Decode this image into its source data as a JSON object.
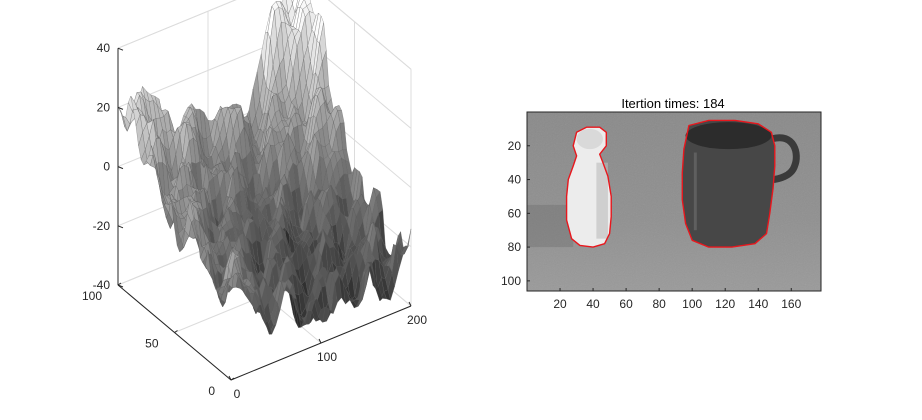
{
  "chart_data": [
    {
      "type": "surface",
      "title": "",
      "xlabel": "",
      "ylabel": "",
      "zlabel": "",
      "xlim": [
        0,
        200
      ],
      "ylim": [
        0,
        100
      ],
      "zlim": [
        -40,
        40
      ],
      "x_ticks": [
        0,
        100,
        200
      ],
      "y_ticks": [
        0,
        50,
        100
      ],
      "z_ticks": [
        -40,
        -20,
        0,
        20,
        40
      ],
      "grid": true,
      "colormap": "gray"
    },
    {
      "type": "image",
      "title": "Itertion times: 184",
      "xlim": [
        0,
        178
      ],
      "ylim": [
        0,
        106
      ],
      "x_ticks": [
        20,
        40,
        60,
        80,
        100,
        120,
        140,
        160
      ],
      "y_ticks": [
        20,
        40,
        60,
        80,
        100
      ],
      "contour_color": "#e8171d",
      "contours": [
        {
          "name": "bottle",
          "points": [
            [
              30,
              12
            ],
            [
              36,
              9
            ],
            [
              44,
              9
            ],
            [
              48,
              12
            ],
            [
              48,
              20
            ],
            [
              44,
              25
            ],
            [
              46,
              30
            ],
            [
              49,
              38
            ],
            [
              51,
              50
            ],
            [
              51,
              62
            ],
            [
              50,
              72
            ],
            [
              47,
              78
            ],
            [
              40,
              80
            ],
            [
              32,
              79
            ],
            [
              27,
              75
            ],
            [
              24,
              64
            ],
            [
              24,
              50
            ],
            [
              25,
              40
            ],
            [
              28,
              32
            ],
            [
              30,
              26
            ],
            [
              28,
              20
            ]
          ]
        },
        {
          "name": "mug",
          "points": [
            [
              98,
              8
            ],
            [
              110,
              5
            ],
            [
              126,
              5
            ],
            [
              140,
              7
            ],
            [
              148,
              12
            ],
            [
              150,
              20
            ],
            [
              150,
              32
            ],
            [
              149,
              45
            ],
            [
              147,
              60
            ],
            [
              145,
              72
            ],
            [
              138,
              78
            ],
            [
              124,
              80
            ],
            [
              110,
              80
            ],
            [
              100,
              76
            ],
            [
              96,
              66
            ],
            [
              94,
              52
            ],
            [
              94,
              36
            ],
            [
              95,
              22
            ]
          ]
        }
      ]
    }
  ]
}
